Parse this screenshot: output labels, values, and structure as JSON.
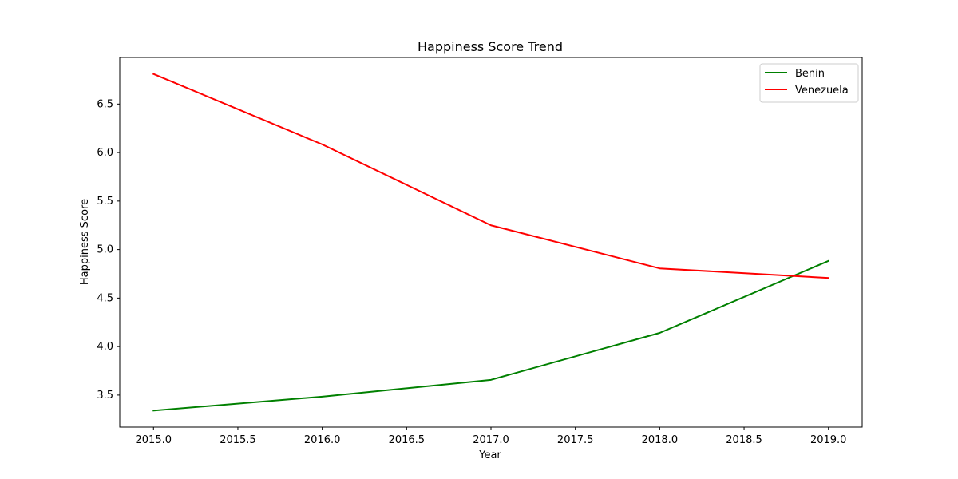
{
  "chart_data": {
    "type": "line",
    "title": "Happiness Score Trend",
    "xlabel": "Year",
    "ylabel": "Happiness Score",
    "x": [
      2015,
      2016,
      2017,
      2018,
      2019
    ],
    "xlim": [
      2014.8,
      2019.2
    ],
    "ylim": [
      3.17,
      6.98
    ],
    "xticks": [
      2015.0,
      2015.5,
      2016.0,
      2016.5,
      2017.0,
      2017.5,
      2018.0,
      2018.5,
      2019.0
    ],
    "xtick_labels": [
      "2015.0",
      "2015.5",
      "2016.0",
      "2016.5",
      "2017.0",
      "2017.5",
      "2018.0",
      "2018.5",
      "2019.0"
    ],
    "yticks": [
      3.5,
      4.0,
      4.5,
      5.0,
      5.5,
      6.0,
      6.5
    ],
    "ytick_labels": [
      "3.5",
      "4.0",
      "4.5",
      "5.0",
      "5.5",
      "6.0",
      "6.5"
    ],
    "grid": false,
    "legend_position": "top-right",
    "series": [
      {
        "name": "Benin",
        "color": "#008000",
        "values": [
          3.34,
          3.484,
          3.657,
          4.141,
          4.883
        ]
      },
      {
        "name": "Venezuela",
        "color": "#ff0000",
        "values": [
          6.81,
          6.084,
          5.25,
          4.806,
          4.707
        ]
      }
    ]
  }
}
